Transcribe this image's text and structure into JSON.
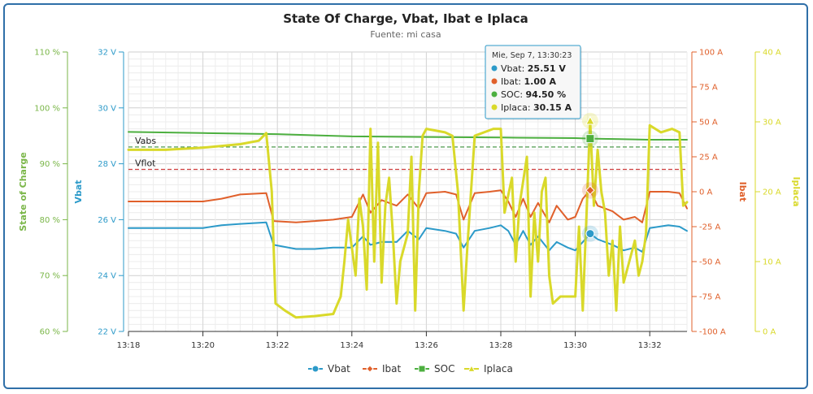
{
  "chart_data": {
    "type": "line",
    "title": "State Of Charge, Vbat, Ibat e Iplaca",
    "subtitle": "Fuente: mi casa",
    "x_ticks": [
      "13:18",
      "13:20",
      "13:22",
      "13:24",
      "13:26",
      "13:28",
      "13:30",
      "13:32"
    ],
    "xlim": [
      "13:18",
      "13:33"
    ],
    "axes": {
      "soc": {
        "title": "State of Charge",
        "unit": "%",
        "range": [
          60,
          110
        ],
        "ticks": [
          "60 %",
          "70 %",
          "80 %",
          "90 %",
          "100 %",
          "110 %"
        ],
        "color": "#7ab648"
      },
      "vbat": {
        "title": "Vbat",
        "unit": "V",
        "range": [
          22,
          32
        ],
        "ticks": [
          "22 V",
          "24 V",
          "26 V",
          "28 V",
          "30 V",
          "32 V"
        ],
        "color": "#2c9ac9"
      },
      "ibat": {
        "title": "Ibat",
        "unit": "A",
        "range": [
          -100,
          100
        ],
        "ticks": [
          "-100 A",
          "-75 A",
          "-50 A",
          "-25 A",
          "0 A",
          "25 A",
          "50 A",
          "75 A",
          "100 A"
        ],
        "color": "#e0602b"
      },
      "iplaca": {
        "title": "Iplaca",
        "unit": "A",
        "range": [
          0,
          40
        ],
        "ticks": [
          "0 A",
          "10 A",
          "20 A",
          "30 A",
          "40 A"
        ],
        "color": "#d9d92a"
      }
    },
    "plot_lines": [
      {
        "label": "Vabs",
        "axis": "vbat",
        "value": 28.6,
        "color": "#3a8f3a"
      },
      {
        "label": "Vflot",
        "axis": "vbat",
        "value": 27.8,
        "color": "#d04040"
      }
    ],
    "series": [
      {
        "name": "Vbat",
        "axis": "vbat",
        "color": "#2c9ac9",
        "marker": "circle",
        "points": [
          [
            "13:18",
            25.7
          ],
          [
            "13:19",
            25.7
          ],
          [
            "13:20",
            25.7
          ],
          [
            "13:20.5",
            25.8
          ],
          [
            "13:21",
            25.85
          ],
          [
            "13:21.7",
            25.9
          ],
          [
            "13:21.9",
            25.1
          ],
          [
            "13:22.5",
            24.95
          ],
          [
            "13:23",
            24.95
          ],
          [
            "13:23.5",
            25.0
          ],
          [
            "13:24",
            25.0
          ],
          [
            "13:24.3",
            25.4
          ],
          [
            "13:24.5",
            25.1
          ],
          [
            "13:24.8",
            25.2
          ],
          [
            "13:25.2",
            25.2
          ],
          [
            "13:25.5",
            25.6
          ],
          [
            "13:25.8",
            25.3
          ],
          [
            "13:26",
            25.7
          ],
          [
            "13:26.5",
            25.6
          ],
          [
            "13:26.8",
            25.5
          ],
          [
            "13:27",
            25.0
          ],
          [
            "13:27.3",
            25.6
          ],
          [
            "13:27.7",
            25.7
          ],
          [
            "13:28",
            25.8
          ],
          [
            "13:28.2",
            25.6
          ],
          [
            "13:28.4",
            25.1
          ],
          [
            "13:28.6",
            25.6
          ],
          [
            "13:28.8",
            25.1
          ],
          [
            "13:29",
            25.4
          ],
          [
            "13:29.3",
            24.9
          ],
          [
            "13:29.5",
            25.2
          ],
          [
            "13:29.8",
            25.0
          ],
          [
            "13:30",
            24.9
          ],
          [
            "13:30.2",
            25.2
          ],
          [
            "13:30.4",
            25.5
          ],
          [
            "13:30.6",
            25.3
          ],
          [
            "13:31",
            25.1
          ],
          [
            "13:31.3",
            24.9
          ],
          [
            "13:31.6",
            25.0
          ],
          [
            "13:31.8",
            24.85
          ],
          [
            "13:32",
            25.7
          ],
          [
            "13:32.5",
            25.8
          ],
          [
            "13:32.8",
            25.75
          ],
          [
            "13:33",
            25.6
          ]
        ]
      },
      {
        "name": "Ibat",
        "axis": "ibat",
        "color": "#e0602b",
        "marker": "diamond",
        "points": [
          [
            "13:18",
            -7
          ],
          [
            "13:19",
            -7
          ],
          [
            "13:20",
            -7
          ],
          [
            "13:20.5",
            -5
          ],
          [
            "13:21",
            -2
          ],
          [
            "13:21.7",
            -1
          ],
          [
            "13:21.9",
            -21
          ],
          [
            "13:22.5",
            -22
          ],
          [
            "13:23",
            -21
          ],
          [
            "13:23.5",
            -20
          ],
          [
            "13:24",
            -18
          ],
          [
            "13:24.3",
            -2
          ],
          [
            "13:24.5",
            -15
          ],
          [
            "13:24.8",
            -6
          ],
          [
            "13:25.2",
            -10
          ],
          [
            "13:25.5",
            -2
          ],
          [
            "13:25.8",
            -12
          ],
          [
            "13:26",
            -1
          ],
          [
            "13:26.5",
            0
          ],
          [
            "13:26.8",
            -2
          ],
          [
            "13:27",
            -20
          ],
          [
            "13:27.3",
            -1
          ],
          [
            "13:27.7",
            0
          ],
          [
            "13:28",
            1
          ],
          [
            "13:28.2",
            -7
          ],
          [
            "13:28.4",
            -18
          ],
          [
            "13:28.6",
            -5
          ],
          [
            "13:28.8",
            -18
          ],
          [
            "13:29",
            -8
          ],
          [
            "13:29.3",
            -22
          ],
          [
            "13:29.5",
            -10
          ],
          [
            "13:29.8",
            -20
          ],
          [
            "13:30",
            -18
          ],
          [
            "13:30.2",
            -5
          ],
          [
            "13:30.4",
            1
          ],
          [
            "13:30.6",
            -10
          ],
          [
            "13:31",
            -14
          ],
          [
            "13:31.3",
            -20
          ],
          [
            "13:31.6",
            -18
          ],
          [
            "13:31.8",
            -22
          ],
          [
            "13:32",
            0
          ],
          [
            "13:32.5",
            0
          ],
          [
            "13:32.8",
            -1
          ],
          [
            "13:33",
            -12
          ]
        ]
      },
      {
        "name": "SOC",
        "axis": "soc",
        "color": "#4caf3f",
        "marker": "square",
        "points": [
          [
            "13:18",
            95.7
          ],
          [
            "13:20",
            95.5
          ],
          [
            "13:22",
            95.3
          ],
          [
            "13:24",
            94.9
          ],
          [
            "13:26",
            94.8
          ],
          [
            "13:28",
            94.7
          ],
          [
            "13:30",
            94.6
          ],
          [
            "13:30.4",
            94.5
          ],
          [
            "13:32",
            94.3
          ],
          [
            "13:33",
            94.3
          ]
        ]
      },
      {
        "name": "Iplaca",
        "axis": "iplaca",
        "color": "#d9d92a",
        "marker": "triangle",
        "points": [
          [
            "13:18",
            26
          ],
          [
            "13:19",
            26
          ],
          [
            "13:20",
            26.3
          ],
          [
            "13:21",
            26.8
          ],
          [
            "13:21.5",
            27.3
          ],
          [
            "13:21.7",
            28.4
          ],
          [
            "13:21.85",
            20
          ],
          [
            "13:21.95",
            4
          ],
          [
            "13:22.2",
            3
          ],
          [
            "13:22.5",
            2
          ],
          [
            "13:23",
            2.2
          ],
          [
            "13:23.5",
            2.5
          ],
          [
            "13:23.7",
            5
          ],
          [
            "13:23.8",
            10
          ],
          [
            "13:23.9",
            16
          ],
          [
            "13:24",
            12
          ],
          [
            "13:24.1",
            8
          ],
          [
            "13:24.2",
            19
          ],
          [
            "13:24.3",
            15
          ],
          [
            "13:24.4",
            6
          ],
          [
            "13:24.5",
            29
          ],
          [
            "13:24.6",
            10
          ],
          [
            "13:24.7",
            27
          ],
          [
            "13:24.8",
            7
          ],
          [
            "13:24.9",
            18
          ],
          [
            "13:25",
            22
          ],
          [
            "13:25.1",
            14
          ],
          [
            "13:25.2",
            4
          ],
          [
            "13:25.3",
            10
          ],
          [
            "13:25.5",
            14
          ],
          [
            "13:25.6",
            25
          ],
          [
            "13:25.7",
            3
          ],
          [
            "13:25.8",
            20
          ],
          [
            "13:25.9",
            28
          ],
          [
            "13:26",
            29
          ],
          [
            "13:26.5",
            28.5
          ],
          [
            "13:26.7",
            28
          ],
          [
            "13:26.85",
            20
          ],
          [
            "13:27",
            3
          ],
          [
            "13:27.1",
            12
          ],
          [
            "13:27.3",
            28
          ],
          [
            "13:27.8",
            29
          ],
          [
            "13:28",
            29
          ],
          [
            "13:28.1",
            17
          ],
          [
            "13:28.3",
            22
          ],
          [
            "13:28.4",
            10
          ],
          [
            "13:28.5",
            18
          ],
          [
            "13:28.7",
            25
          ],
          [
            "13:28.8",
            5
          ],
          [
            "13:28.9",
            17
          ],
          [
            "13:29",
            10
          ],
          [
            "13:29.1",
            20
          ],
          [
            "13:29.2",
            22
          ],
          [
            "13:29.3",
            8
          ],
          [
            "13:29.4",
            4
          ],
          [
            "13:29.6",
            5
          ],
          [
            "13:29.8",
            5
          ],
          [
            "13:30",
            5
          ],
          [
            "13:30.1",
            15
          ],
          [
            "13:30.2",
            3
          ],
          [
            "13:30.4",
            30.15
          ],
          [
            "13:30.5",
            18
          ],
          [
            "13:30.6",
            26
          ],
          [
            "13:30.7",
            20
          ],
          [
            "13:30.8",
            17
          ],
          [
            "13:30.9",
            8
          ],
          [
            "13:31",
            13
          ],
          [
            "13:31.1",
            3
          ],
          [
            "13:31.2",
            15
          ],
          [
            "13:31.3",
            7
          ],
          [
            "13:31.4",
            9
          ],
          [
            "13:31.5",
            11
          ],
          [
            "13:31.6",
            13
          ],
          [
            "13:31.7",
            8
          ],
          [
            "13:31.8",
            10
          ],
          [
            "13:31.9",
            14
          ],
          [
            "13:32",
            29.5
          ],
          [
            "13:32.3",
            28.5
          ],
          [
            "13:32.6",
            29
          ],
          [
            "13:32.8",
            28.5
          ],
          [
            "13:32.9",
            18
          ],
          [
            "13:33",
            18.5
          ]
        ]
      }
    ],
    "tooltip": {
      "header": "Mie, Sep 7, 13:30:23",
      "x": "13:30.4",
      "rows": [
        {
          "name": "Vbat",
          "sep": ": ",
          "value": "25.51 V",
          "color": "#2c9ac9",
          "series": 0
        },
        {
          "name": "Ibat",
          "sep": ": ",
          "value": "1.00 A",
          "color": "#e0602b",
          "series": 1
        },
        {
          "name": "SOC",
          "sep": ": ",
          "value": "94.50 %",
          "color": "#4caf3f",
          "series": 2
        },
        {
          "name": "Iplaca",
          "sep": ": ",
          "value": "30.15 A",
          "color": "#d9d92a",
          "series": 3
        }
      ]
    },
    "legend": {
      "placement": "bottom-center",
      "items": [
        "Vbat",
        "Ibat",
        "SOC",
        "Iplaca"
      ]
    },
    "grid": true
  }
}
